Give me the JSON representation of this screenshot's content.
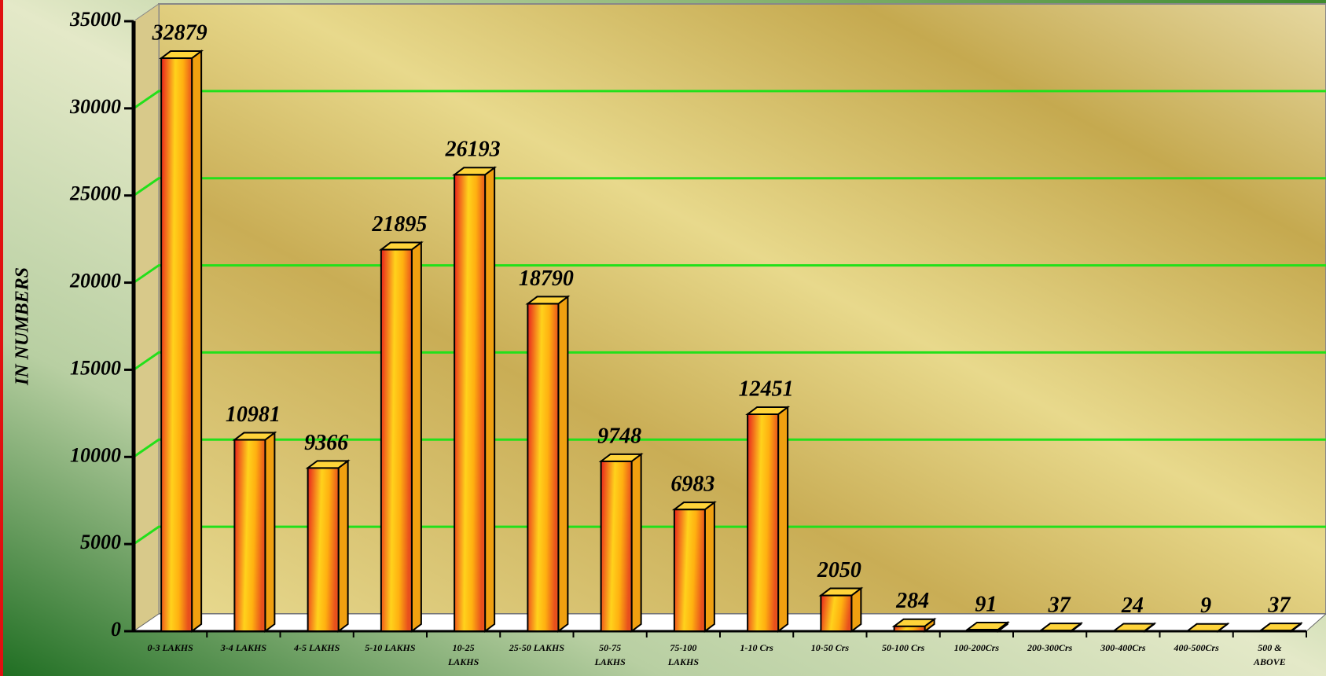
{
  "chart_data": {
    "type": "bar3d",
    "y_axis_label": "IN NUMBERS",
    "categories": [
      "0-3 LAKHS",
      "3-4 LAKHS",
      "4-5 LAKHS",
      "5-10 LAKHS",
      "10-25\nLAKHS",
      "25-50 LAKHS",
      "50-75\nLAKHS",
      "75-100\nLAKHS",
      "1-10 Crs",
      "10-50 Crs",
      "50-100 Crs",
      "100-200Crs",
      "200-300Crs",
      "300-400Crs",
      "400-500Crs",
      "500 &\nABOVE"
    ],
    "values": [
      32879,
      10981,
      9366,
      21895,
      26193,
      18790,
      9748,
      6983,
      12451,
      2050,
      284,
      91,
      37,
      24,
      9,
      37
    ],
    "ylim": [
      0,
      35000
    ],
    "yticks": [
      0,
      5000,
      10000,
      15000,
      20000,
      25000,
      30000,
      35000
    ],
    "grid": true,
    "grid_color": "#22e01a"
  }
}
